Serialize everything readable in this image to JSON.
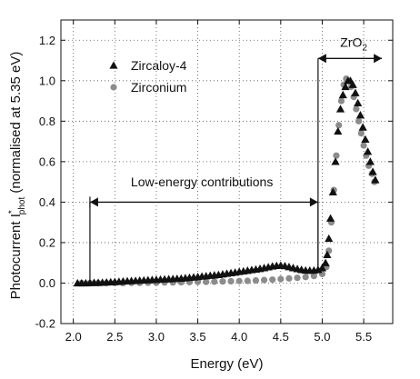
{
  "chart_data": {
    "type": "scatter",
    "xlabel": "Energy (eV)",
    "ylabel": {
      "main": "Photocurrent I",
      "sup": "*",
      "sub": "phot",
      "rest": " (normalised at 5.35 eV)"
    },
    "xlim": [
      1.85,
      5.85
    ],
    "ylim": [
      -0.2,
      1.3
    ],
    "x_ticks": [
      {
        "value": 2.0,
        "label": "2.0"
      },
      {
        "value": 2.5,
        "label": "2.5"
      },
      {
        "value": 3.0,
        "label": "3.0"
      },
      {
        "value": 3.5,
        "label": "3.5"
      },
      {
        "value": 4.0,
        "label": "4.0"
      },
      {
        "value": 4.5,
        "label": "4.5"
      },
      {
        "value": 5.0,
        "label": "5.0"
      },
      {
        "value": 5.5,
        "label": "5.5"
      }
    ],
    "y_ticks": [
      {
        "value": -0.2,
        "label": "-0.2"
      },
      {
        "value": 0.0,
        "label": "0.0"
      },
      {
        "value": 0.2,
        "label": "0.2"
      },
      {
        "value": 0.4,
        "label": "0.4"
      },
      {
        "value": 0.6,
        "label": "0.6"
      },
      {
        "value": 0.8,
        "label": "0.8"
      },
      {
        "value": 1.0,
        "label": "1.0"
      },
      {
        "value": 1.2,
        "label": "1.2"
      }
    ],
    "grid": true,
    "legend_position": "top-right",
    "series": [
      {
        "name": "Zircaloy-4",
        "marker": "triangle",
        "color": "#111111",
        "points": [
          [
            2.05,
            0.0
          ],
          [
            2.1,
            0.0
          ],
          [
            2.15,
            0.0
          ],
          [
            2.2,
            0.001
          ],
          [
            2.25,
            0.002
          ],
          [
            2.3,
            0.002
          ],
          [
            2.35,
            0.003
          ],
          [
            2.4,
            0.004
          ],
          [
            2.45,
            0.005
          ],
          [
            2.5,
            0.006
          ],
          [
            2.55,
            0.007
          ],
          [
            2.6,
            0.009
          ],
          [
            2.65,
            0.01
          ],
          [
            2.7,
            0.011
          ],
          [
            2.75,
            0.012
          ],
          [
            2.8,
            0.013
          ],
          [
            2.85,
            0.014
          ],
          [
            2.9,
            0.015
          ],
          [
            2.95,
            0.016
          ],
          [
            3.0,
            0.017
          ],
          [
            3.05,
            0.018
          ],
          [
            3.1,
            0.019
          ],
          [
            3.15,
            0.02
          ],
          [
            3.2,
            0.021
          ],
          [
            3.25,
            0.022
          ],
          [
            3.3,
            0.023
          ],
          [
            3.35,
            0.025
          ],
          [
            3.4,
            0.027
          ],
          [
            3.45,
            0.029
          ],
          [
            3.5,
            0.031
          ],
          [
            3.55,
            0.033
          ],
          [
            3.6,
            0.035
          ],
          [
            3.65,
            0.037
          ],
          [
            3.7,
            0.039
          ],
          [
            3.75,
            0.041
          ],
          [
            3.8,
            0.044
          ],
          [
            3.85,
            0.047
          ],
          [
            3.9,
            0.05
          ],
          [
            3.95,
            0.053
          ],
          [
            4.0,
            0.056
          ],
          [
            4.05,
            0.059
          ],
          [
            4.1,
            0.062
          ],
          [
            4.15,
            0.065
          ],
          [
            4.2,
            0.068
          ],
          [
            4.25,
            0.071
          ],
          [
            4.3,
            0.075
          ],
          [
            4.35,
            0.079
          ],
          [
            4.4,
            0.083
          ],
          [
            4.45,
            0.086
          ],
          [
            4.5,
            0.087
          ],
          [
            4.55,
            0.085
          ],
          [
            4.6,
            0.08
          ],
          [
            4.65,
            0.075
          ],
          [
            4.7,
            0.07
          ],
          [
            4.75,
            0.066
          ],
          [
            4.8,
            0.063
          ],
          [
            4.85,
            0.062
          ],
          [
            4.9,
            0.063
          ],
          [
            4.95,
            0.066
          ],
          [
            5.0,
            0.075
          ],
          [
            5.04,
            0.1
          ],
          [
            5.06,
            0.14
          ],
          [
            5.08,
            0.22
          ],
          [
            5.1,
            0.32
          ],
          [
            5.13,
            0.45
          ],
          [
            5.16,
            0.6
          ],
          [
            5.19,
            0.75
          ],
          [
            5.22,
            0.86
          ],
          [
            5.25,
            0.93
          ],
          [
            5.28,
            0.97
          ],
          [
            5.31,
            1.0
          ],
          [
            5.34,
            1.0
          ],
          [
            5.37,
            0.98
          ],
          [
            5.4,
            0.94
          ],
          [
            5.43,
            0.89
          ],
          [
            5.46,
            0.83
          ],
          [
            5.49,
            0.77
          ],
          [
            5.52,
            0.71
          ],
          [
            5.55,
            0.65
          ],
          [
            5.58,
            0.6
          ],
          [
            5.61,
            0.55
          ],
          [
            5.64,
            0.51
          ]
        ]
      },
      {
        "name": "Zirconium",
        "marker": "circle",
        "color": "#8c8c8c",
        "points": [
          [
            2.1,
            0.0
          ],
          [
            2.2,
            0.0
          ],
          [
            2.3,
            0.0
          ],
          [
            2.4,
            0.0
          ],
          [
            2.5,
            0.0
          ],
          [
            2.6,
            0.0
          ],
          [
            2.7,
            0.001
          ],
          [
            2.8,
            0.001
          ],
          [
            2.9,
            0.002
          ],
          [
            3.0,
            0.002
          ],
          [
            3.1,
            0.003
          ],
          [
            3.2,
            0.003
          ],
          [
            3.3,
            0.004
          ],
          [
            3.4,
            0.005
          ],
          [
            3.5,
            0.006
          ],
          [
            3.6,
            0.006
          ],
          [
            3.7,
            0.007
          ],
          [
            3.8,
            0.008
          ],
          [
            3.9,
            0.009
          ],
          [
            4.0,
            0.01
          ],
          [
            4.1,
            0.011
          ],
          [
            4.2,
            0.013
          ],
          [
            4.3,
            0.015
          ],
          [
            4.4,
            0.017
          ],
          [
            4.5,
            0.02
          ],
          [
            4.6,
            0.023
          ],
          [
            4.7,
            0.026
          ],
          [
            4.8,
            0.03
          ],
          [
            4.9,
            0.035
          ],
          [
            5.0,
            0.045
          ],
          [
            5.05,
            0.08
          ],
          [
            5.08,
            0.16
          ],
          [
            5.11,
            0.3
          ],
          [
            5.14,
            0.46
          ],
          [
            5.17,
            0.63
          ],
          [
            5.2,
            0.78
          ],
          [
            5.23,
            0.9
          ],
          [
            5.26,
            0.98
          ],
          [
            5.29,
            1.01
          ],
          [
            5.32,
            1.0
          ],
          [
            5.35,
            0.97
          ],
          [
            5.38,
            0.92
          ],
          [
            5.41,
            0.86
          ],
          [
            5.44,
            0.8
          ],
          [
            5.47,
            0.74
          ],
          [
            5.5,
            0.68
          ],
          [
            5.53,
            0.63
          ],
          [
            5.56,
            0.58
          ],
          [
            5.6,
            0.54
          ],
          [
            5.63,
            0.5
          ]
        ]
      }
    ],
    "annotations": [
      {
        "id": "low-energy",
        "text": "Low-energy contributions",
        "arrow_x": [
          2.2,
          4.95
        ],
        "arrow_y": 0.4,
        "text_x": 3.55,
        "text_y": 0.5,
        "drop_x": 4.95,
        "drop_to_y": 0.08
      },
      {
        "id": "zro2",
        "text": "ZrO",
        "text_sub": "2",
        "arrow_x": [
          4.95,
          5.72
        ],
        "arrow_y": 1.11,
        "text_x": 5.38,
        "text_y": 1.19,
        "drop_x": 4.95,
        "drop_to_y": 0.08
      }
    ]
  }
}
